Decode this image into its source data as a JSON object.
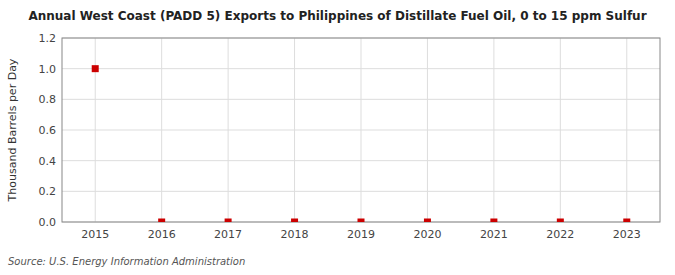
{
  "chart_data": {
    "type": "scatter",
    "title": "Annual West Coast (PADD 5) Exports to Philippines of Distillate Fuel Oil, 0 to 15 ppm Sulfur",
    "ylabel": "Thousand Barrels per Day",
    "annotations": [
      "Source: U.S. Energy Information Administration"
    ],
    "x": [
      2015,
      2016,
      2017,
      2018,
      2019,
      2020,
      2021,
      2022,
      2023
    ],
    "values": [
      1.0,
      0.0,
      0.0,
      0.0,
      0.0,
      0.0,
      0.0,
      0.0,
      0.0
    ],
    "color": "#cc0000",
    "marker": "square",
    "xlim": [
      2014.5,
      2023.5
    ],
    "xticks": [
      2015,
      2016,
      2017,
      2018,
      2019,
      2020,
      2021,
      2022,
      2023
    ],
    "ylim": [
      0.0,
      1.2
    ],
    "yticks": [
      {
        "value": 0.0,
        "label": "0.0"
      },
      0.2,
      0.4,
      0.6,
      0.8,
      {
        "value": 1.0,
        "label": "1.0"
      },
      1.2
    ],
    "grid": true
  }
}
